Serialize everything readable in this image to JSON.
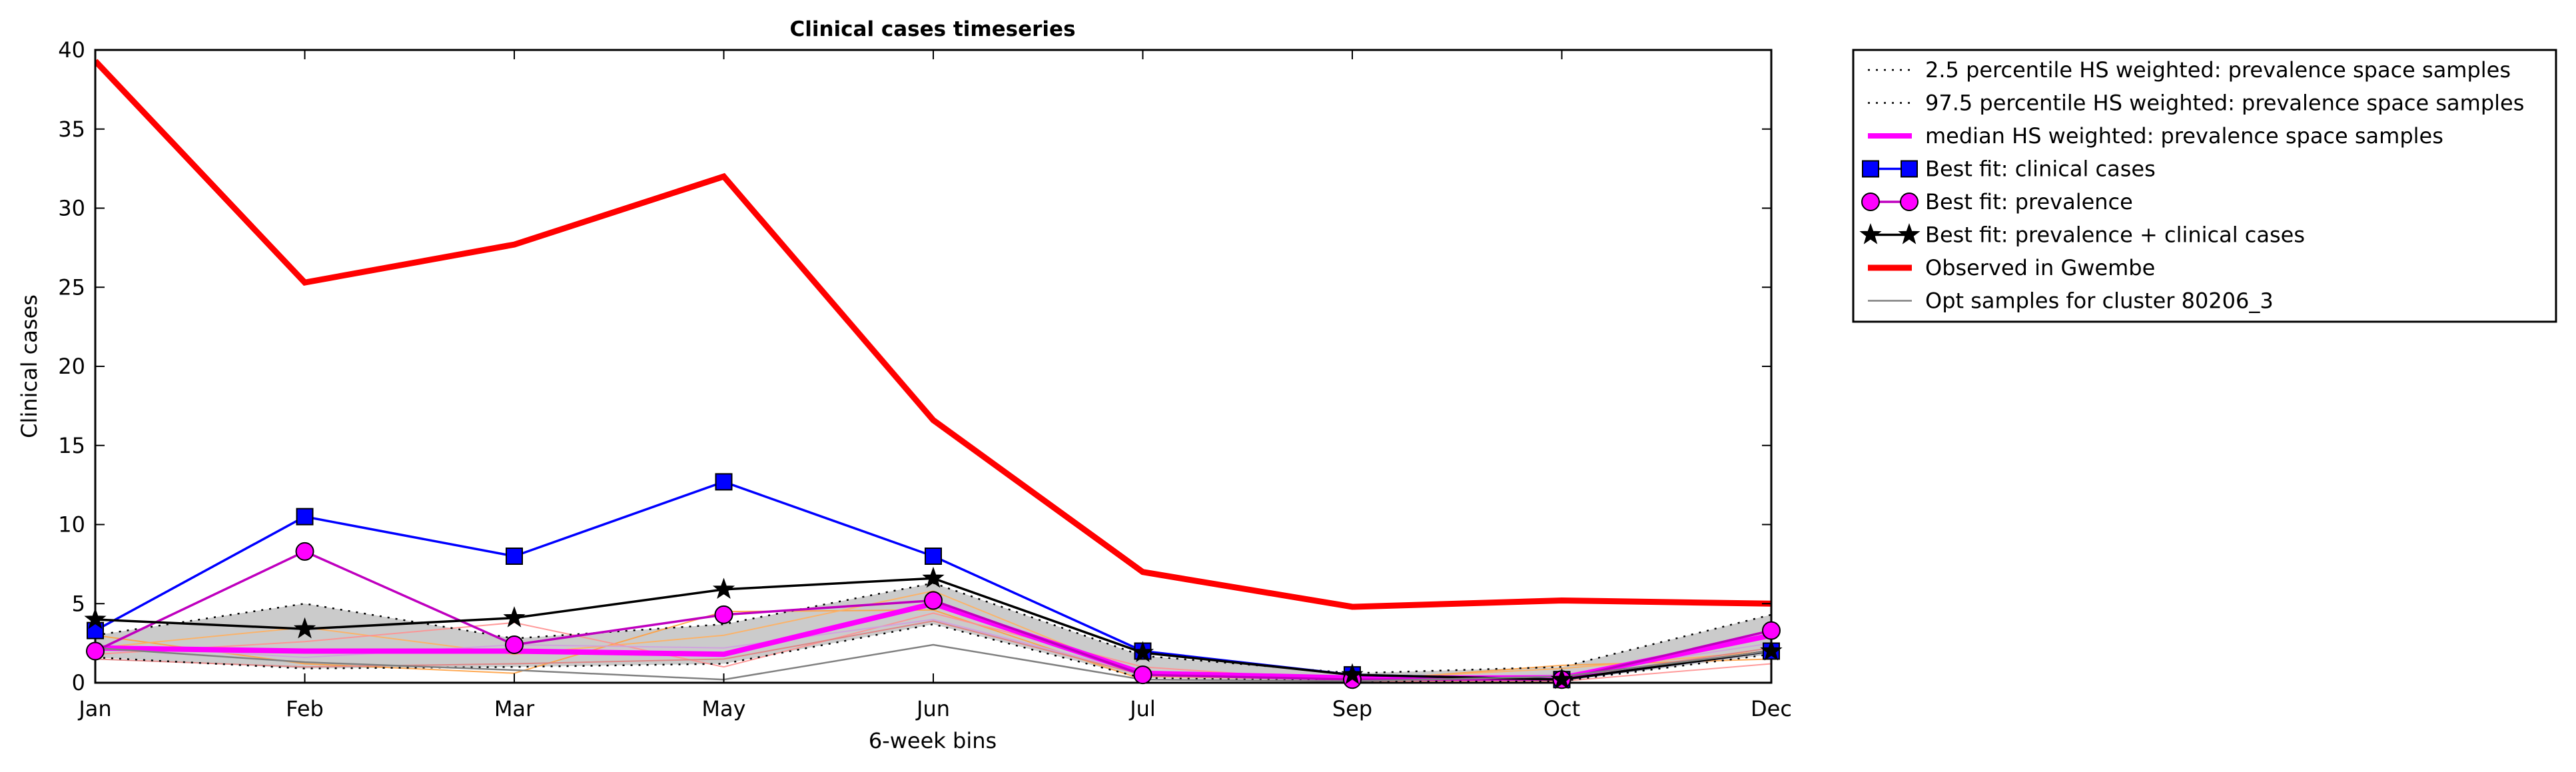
{
  "chart_data": {
    "type": "line",
    "title": "Clinical cases timeseries",
    "xlabel": "6-week bins",
    "ylabel": "Clinical cases",
    "categories": [
      "Jan",
      "Feb",
      "Mar",
      "May",
      "Jun",
      "Jul",
      "Sep",
      "Oct",
      "Dec"
    ],
    "ylim": [
      0,
      40
    ],
    "yticks": [
      0,
      5,
      10,
      15,
      20,
      25,
      30,
      35,
      40
    ],
    "grid": false,
    "legend_position": "outside-right",
    "band": {
      "lower": [
        1.6,
        0.9,
        1.0,
        1.2,
        3.7,
        0.3,
        0.1,
        0.1,
        1.8
      ],
      "upper": [
        3.0,
        5.0,
        2.8,
        3.7,
        6.3,
        1.7,
        0.6,
        1.0,
        4.3
      ],
      "color": "#a0a0a0"
    },
    "series": [
      {
        "name": "2.5 percentile HS weighted: prevalence space samples",
        "color": "#000000",
        "style": "dotted",
        "marker": "none",
        "values": [
          1.6,
          0.9,
          1.0,
          1.2,
          3.7,
          0.3,
          0.1,
          0.1,
          1.8
        ]
      },
      {
        "name": "97.5 percentile HS weighted: prevalence space samples",
        "color": "#000000",
        "style": "dotted",
        "marker": "none",
        "values": [
          3.0,
          5.0,
          2.8,
          3.7,
          6.3,
          1.7,
          0.6,
          1.0,
          4.3
        ]
      },
      {
        "name": "median HS weighted: prevalence space samples",
        "color": "#ff00ff",
        "style": "solid",
        "marker": "none",
        "values": [
          2.2,
          2.0,
          2.0,
          1.8,
          5.0,
          0.6,
          0.3,
          0.3,
          3.0
        ]
      },
      {
        "name": "Best fit: clinical cases",
        "color": "#0000ff",
        "style": "solid",
        "marker": "square",
        "values": [
          3.3,
          10.5,
          8.0,
          12.7,
          8.0,
          2.0,
          0.5,
          0.2,
          2.0
        ]
      },
      {
        "name": "Best fit: prevalence",
        "color": "#bf00bf",
        "style": "solid",
        "marker": "circle",
        "values": [
          2.0,
          8.3,
          2.4,
          4.3,
          5.2,
          0.5,
          0.2,
          0.2,
          3.3
        ]
      },
      {
        "name": "Best fit: prevalence + clinical cases",
        "color": "#000000",
        "style": "solid",
        "marker": "star",
        "values": [
          4.0,
          3.4,
          4.1,
          5.9,
          6.6,
          1.9,
          0.5,
          0.2,
          2.0
        ]
      },
      {
        "name": "Observed in Gwembe",
        "color": "#ff0000",
        "style": "solid",
        "marker": "none",
        "values": [
          39.3,
          25.3,
          27.7,
          32.0,
          16.6,
          7.0,
          4.8,
          5.2,
          5.0
        ]
      },
      {
        "name": "Opt samples for cluster 80206_3",
        "color": "#808080",
        "style": "solid",
        "marker": "none",
        "values": [
          2.2,
          1.3,
          0.8,
          0.2,
          2.4,
          0.2,
          0.1,
          0.4,
          2.0
        ]
      }
    ],
    "extra_samples": [
      {
        "color": "#ffa040",
        "values": [
          3.0,
          1.2,
          0.6,
          4.5,
          4.6,
          0.2,
          0.1,
          1.1,
          1.5
        ]
      },
      {
        "color": "#ffb060",
        "values": [
          2.2,
          3.5,
          1.8,
          3.0,
          5.8,
          0.4,
          0.2,
          0.9,
          2.0
        ]
      },
      {
        "color": "#ff9090",
        "values": [
          1.8,
          2.6,
          3.8,
          1.0,
          4.4,
          1.0,
          0.1,
          0.1,
          1.2
        ]
      },
      {
        "color": "#d0a0e0",
        "values": [
          2.4,
          1.6,
          2.4,
          2.2,
          4.0,
          0.6,
          0.3,
          0.5,
          2.5
        ]
      },
      {
        "color": "#e08080",
        "values": [
          1.5,
          1.0,
          1.2,
          1.5,
          3.9,
          0.5,
          0.2,
          0.3,
          2.2
        ]
      }
    ]
  }
}
